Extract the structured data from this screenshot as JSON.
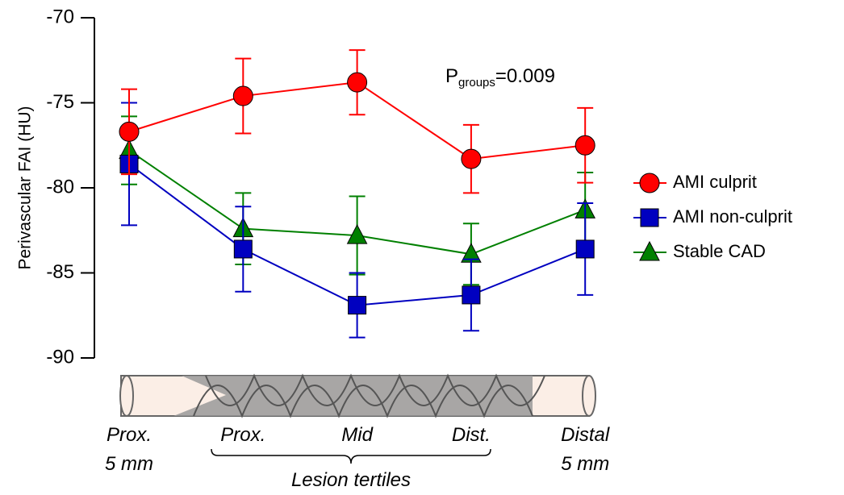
{
  "chart_data": {
    "type": "line",
    "y_label": "Perivascular FAI (HU)",
    "categories": [
      "Prox.\n5 mm",
      "Prox.",
      "Mid",
      "Dist.",
      "Distal\n5 mm"
    ],
    "x_group_label": "Lesion tertiles",
    "ylim": [
      -90,
      -70
    ],
    "yticks": [
      -90,
      -85,
      -80,
      -75,
      -70
    ],
    "annotation": {
      "main": "P",
      "sub": "groups",
      "rest": "=0.009"
    },
    "series": [
      {
        "name": "AMI culprit",
        "color": "#ff0000",
        "marker": "circle",
        "values": [
          -76.7,
          -74.6,
          -73.8,
          -78.3,
          -77.5
        ],
        "errors": [
          2.5,
          2.2,
          1.9,
          2.0,
          2.2
        ]
      },
      {
        "name": "AMI non-culprit",
        "color": "#0000c0",
        "marker": "square",
        "values": [
          -78.6,
          -83.6,
          -86.9,
          -86.3,
          -83.6
        ],
        "errors": [
          3.6,
          2.5,
          1.9,
          2.1,
          2.7
        ]
      },
      {
        "name": "Stable CAD",
        "color": "#008000",
        "marker": "triangle",
        "values": [
          -77.8,
          -82.4,
          -82.8,
          -83.9,
          -81.3
        ],
        "errors": [
          2.0,
          2.1,
          2.3,
          1.8,
          2.2
        ]
      }
    ]
  }
}
